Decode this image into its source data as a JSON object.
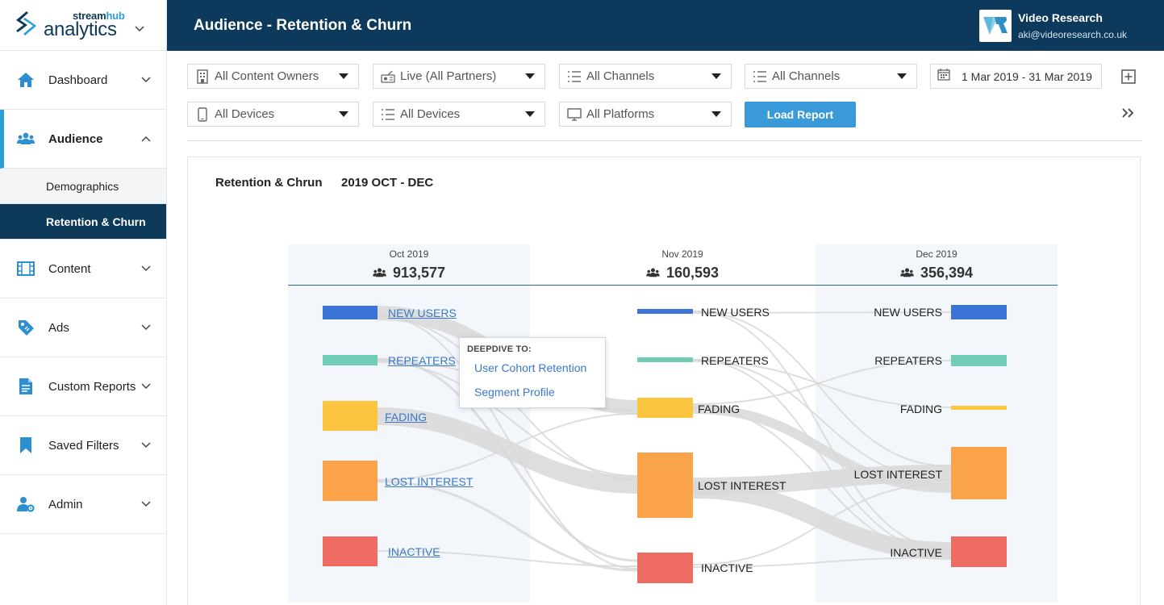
{
  "brand": {
    "top_a": "stream",
    "top_b": "hub",
    "main": "analytics"
  },
  "header": {
    "title": "Audience - Retention & Churn",
    "user_name": "Video Research",
    "user_email": "aki@videoresearch.co.uk"
  },
  "sidebar": {
    "items": [
      {
        "label": "Dashboard",
        "icon": "home-icon"
      },
      {
        "label": "Audience",
        "icon": "users-icon"
      },
      {
        "label": "Content",
        "icon": "film-icon"
      },
      {
        "label": "Ads",
        "icon": "tag-icon"
      },
      {
        "label": "Custom Reports",
        "icon": "document-icon"
      },
      {
        "label": "Saved Filters",
        "icon": "bookmark-icon"
      },
      {
        "label": "Admin",
        "icon": "user-gear-icon"
      }
    ],
    "sub_items": [
      {
        "label": "Demographics"
      },
      {
        "label": "Retention & Churn"
      }
    ]
  },
  "filters": {
    "content_owners": "All Content Owners",
    "partners": "Live (All Partners)",
    "channels_1": "All Channels",
    "channels_2": "All Channels",
    "date_range": "1 Mar 2019 - 31 Mar 2019",
    "devices_1": "All Devices",
    "devices_2": "All Devices",
    "platforms": "All Platforms",
    "load_report": "Load Report"
  },
  "report": {
    "title": "Retention & Chrun",
    "period": "2019  OCT - DEC",
    "columns": [
      {
        "month": "Oct 2019",
        "total": "913,577"
      },
      {
        "month": "Nov 2019",
        "total": "160,593"
      },
      {
        "month": "Dec 2019",
        "total": "356,394"
      }
    ],
    "segments": [
      "NEW USERS",
      "REPEATERS",
      "FADING",
      "LOST INTEREST",
      "INACTIVE"
    ],
    "segment_colors": {
      "NEW USERS": "#3a74d6",
      "REPEATERS": "#72cdb6",
      "FADING": "#fbc540",
      "LOST INTEREST": "#fba348",
      "INACTIVE": "#ee6c63"
    }
  },
  "tooltip": {
    "heading": "DEEPDIVE TO:",
    "links": [
      "User Cohort Retention",
      "Segment Profile"
    ]
  }
}
